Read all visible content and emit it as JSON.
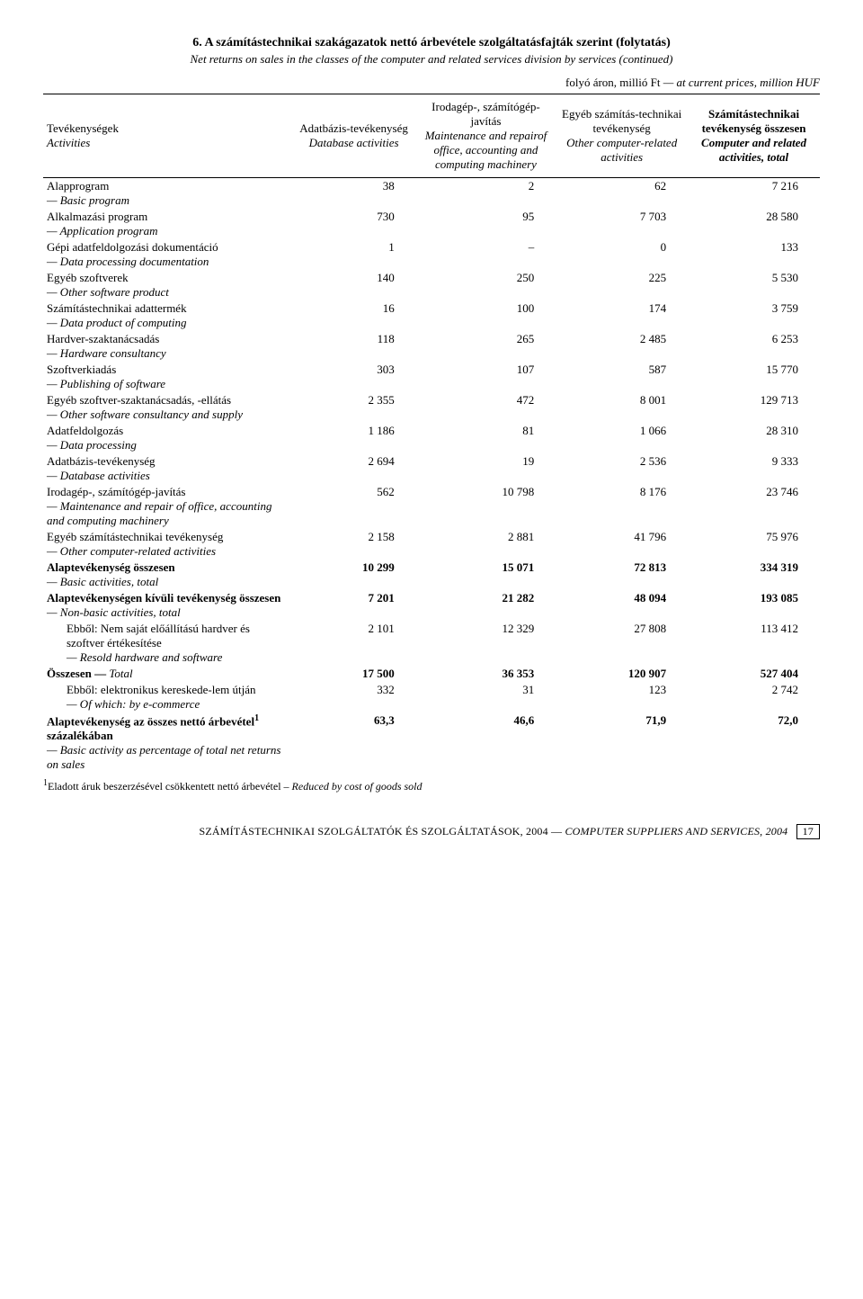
{
  "title_hu": "6.  A számítástechnikai szakágazatok nettó árbevétele szolgáltatásfajták szerint (folytatás)",
  "subtitle_en": "Net returns on sales in the classes of the computer and related services division by services (continued)",
  "unit_hu": "folyó áron, millió Ft",
  "unit_en": " — at current prices, million HUF",
  "headers": {
    "c0_hu": "Tevékenységek",
    "c0_en": "Activities",
    "c1_hu": "Adatbázis-tevékenység",
    "c1_en": "Database activities",
    "c2_hu": "Irodagép-, számítógép-javítás",
    "c2_en": "Maintenance and repairof office, accounting and computing machinery",
    "c3_hu": "Egyéb számítás-technikai tevékenység",
    "c3_en": "Other computer-related activities",
    "c4_hu": "Számítástechnikai tevékenység összesen",
    "c4_en": "Computer and related activities, total"
  },
  "rows": [
    {
      "hu": "Alapprogram",
      "en": "— Basic program",
      "v": [
        "38",
        "2",
        "62",
        "7 216"
      ]
    },
    {
      "hu": "Alkalmazási program",
      "en": "— Application program",
      "v": [
        "730",
        "95",
        "7 703",
        "28 580"
      ]
    },
    {
      "hu": "Gépi adatfeldolgozási dokumentáció",
      "en": "— Data processing documentation",
      "v": [
        "1",
        "–",
        "0",
        "133"
      ]
    },
    {
      "hu": "Egyéb szoftverek",
      "en": "— Other software product",
      "v": [
        "140",
        "250",
        "225",
        "5 530"
      ]
    },
    {
      "hu": "Számítástechnikai adattermék",
      "en": "— Data product of computing",
      "v": [
        "16",
        "100",
        "174",
        "3 759"
      ]
    },
    {
      "hu": "Hardver-szaktanácsadás",
      "en": "— Hardware consultancy",
      "v": [
        "118",
        "265",
        "2 485",
        "6 253"
      ]
    },
    {
      "hu": "Szoftverkiadás",
      "en": "— Publishing of software",
      "v": [
        "303",
        "107",
        "587",
        "15 770"
      ]
    },
    {
      "hu": "Egyéb szoftver-szaktanácsadás, -ellátás",
      "en": "— Other software consultancy and supply",
      "v": [
        "2 355",
        "472",
        "8 001",
        "129 713"
      ]
    },
    {
      "hu": "Adatfeldolgozás",
      "en": "— Data processing",
      "v": [
        "1 186",
        "81",
        "1 066",
        "28 310"
      ]
    },
    {
      "hu": "Adatbázis-tevékenység",
      "en": "— Database activities",
      "v": [
        "2 694",
        "19",
        "2 536",
        "9 333"
      ]
    },
    {
      "hu": "Irodagép-, számítógép-javítás",
      "en": "— Maintenance and repair of office, accounting and computing machinery",
      "v": [
        "562",
        "10 798",
        "8 176",
        "23 746"
      ]
    },
    {
      "hu": "Egyéb számítástechnikai tevékenység",
      "en": "— Other computer-related activities",
      "v": [
        "2 158",
        "2 881",
        "41 796",
        "75 976"
      ]
    },
    {
      "bold": true,
      "hu": "Alaptevékenység összesen",
      "en": "— Basic activities, total",
      "v": [
        "10 299",
        "15 071",
        "72 813",
        "334 319"
      ]
    },
    {
      "bold": true,
      "hu": "Alaptevékenységen kívüli tevékenység összesen",
      "en": "— Non-basic activities, total",
      "v": [
        "7 201",
        "21 282",
        "48 094",
        "193 085"
      ]
    },
    {
      "indent": true,
      "hu": "Ebből: Nem saját előállítású hardver és szoftver értékesítése",
      "en": "— Resold hardware and software",
      "v": [
        "2 101",
        "12 329",
        "27 808",
        "113 412"
      ]
    },
    {
      "bold": true,
      "hu": "Összesen — ",
      "en_inline": "Total",
      "v": [
        "17 500",
        "36 353",
        "120 907",
        "527 404"
      ]
    },
    {
      "indent": true,
      "hu": "Ebből: elektronikus kereskede-lem útján",
      "en": "— Of which: by e-commerce",
      "v": [
        "332",
        "31",
        "123",
        "2 742"
      ]
    },
    {
      "bold": true,
      "hu": "Alaptevékenység az összes nettó árbevétel",
      "sup": "1",
      "hu2": " százalékában",
      "en": "— Basic activity as percentage of total net returns on sales",
      "v": [
        "63,3",
        "46,6",
        "71,9",
        "72,0"
      ]
    }
  ],
  "footnote_sup": "1",
  "footnote_hu": "Eladott áruk beszerzésével csökkentett nettó árbevétel – ",
  "footnote_en": "Reduced by cost of goods sold",
  "footer_hu": "SZÁMÍTÁSTECHNIKAI SZOLGÁLTATÓK ÉS SZOLGÁLTATÁSOK, 2004 — ",
  "footer_en": "COMPUTER SUPPLIERS AND SERVICES, 2004",
  "page": "17"
}
